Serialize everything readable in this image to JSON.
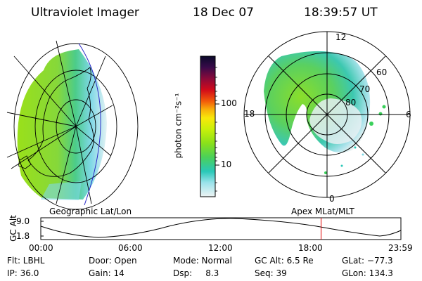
{
  "header": {
    "instrument": "Ultraviolet Imager",
    "date": "18 Dec 07",
    "time": "18:39:57 UT"
  },
  "colorbar": {
    "label": "photon cm⁻²s⁻¹",
    "ticks": [
      "100",
      "10"
    ],
    "colors": [
      "#0a0a2a",
      "#2a0a4a",
      "#5a0a5a",
      "#8a0a3a",
      "#c80a1a",
      "#f04a0a",
      "#f8a00a",
      "#f8e00a",
      "#c8f00a",
      "#8ae01a",
      "#4ad05a",
      "#2ac8b0",
      "#8ae0e8",
      "#dceef0"
    ]
  },
  "polar_plot": {
    "mlt_labels": [
      "12",
      "18",
      "6",
      "0"
    ],
    "lat_labels": [
      "60",
      "70",
      "80"
    ]
  },
  "map_labels": {
    "left": "Geographic Lat/Lon",
    "right": "Apex MLat/MLT"
  },
  "alt_plot": {
    "ylabel": "GC Alt",
    "yticks": [
      "9.0",
      "1.8"
    ],
    "xticks": [
      "00:00",
      "06:00",
      "12:00",
      "18:00",
      "23:59"
    ],
    "current_time_hours": 18.67
  },
  "info": {
    "filter": "Flt: LBHL",
    "ip": "IP: 36.0",
    "door": "Door: Open",
    "gain": "Gain: 14",
    "mode": "Mode: Normal",
    "dsp": "Dsp:     8.3",
    "gc_alt": "GC Alt: 6.5 Re",
    "seq": "Seq: 39",
    "glat": "GLat: −77.3",
    "glon": "GLon: 134.3"
  }
}
